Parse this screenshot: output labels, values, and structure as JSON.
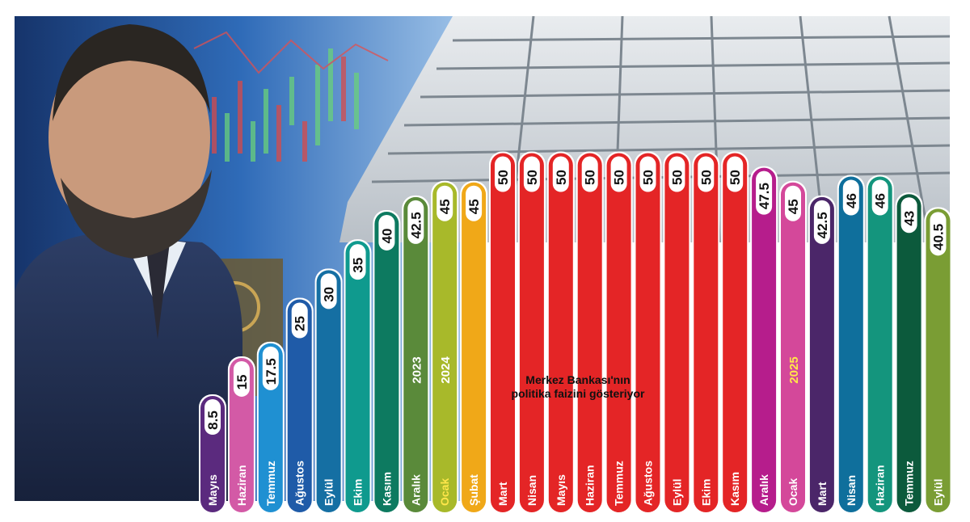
{
  "chart_data": {
    "type": "bar",
    "categories": [
      "Mayıs",
      "Haziran",
      "Temmuz",
      "Ağustos",
      "Eylül",
      "Ekim",
      "Kasım",
      "Aralık",
      "Ocak",
      "Şubat",
      "Mart",
      "Nisan",
      "Mayıs",
      "Haziran",
      "Temmuz",
      "Ağustos",
      "Eylül",
      "Ekim",
      "Kasım",
      "Aralık",
      "Ocak",
      "Mart",
      "Nisan",
      "Haziran",
      "Temmuz",
      "Eylül"
    ],
    "values": [
      8.5,
      15,
      17.5,
      25,
      30,
      35,
      40,
      42.5,
      45,
      45,
      50,
      50,
      50,
      50,
      50,
      50,
      50,
      50,
      50,
      47.5,
      45,
      42.5,
      46,
      46,
      43,
      40.5
    ],
    "value_labels": [
      "8.5",
      "15",
      "17.5",
      "25",
      "30",
      "35",
      "40",
      "42.5",
      "45",
      "45",
      "50",
      "50",
      "50",
      "50",
      "50",
      "50",
      "50",
      "50",
      "50",
      "47.5",
      "45",
      "42.5",
      "46",
      "46",
      "43",
      "40.5"
    ],
    "colors": [
      "#5b2a7e",
      "#d35aa6",
      "#1f90d2",
      "#1f5ba8",
      "#156fa3",
      "#0f9a8e",
      "#0d7a60",
      "#5a8a3a",
      "#a8b92a",
      "#f0a818",
      "#e42526",
      "#e42526",
      "#e42526",
      "#e42526",
      "#e42526",
      "#e42526",
      "#e42526",
      "#e42526",
      "#e42526",
      "#b61d8c",
      "#d4489a",
      "#4b2669",
      "#0f6f9c",
      "#14957d",
      "#0c5a3c",
      "#7a9d34"
    ],
    "year_markers": [
      {
        "index": 7,
        "text": "2023",
        "color": "#ffffff"
      },
      {
        "index": 8,
        "text": "2024",
        "color": "#ffffff"
      },
      {
        "index": 20,
        "text": "2025",
        "color": "#ffe64a"
      }
    ],
    "highlight_categories": [
      8
    ],
    "caption": [
      "Merkez Bankası'nın",
      "politika faizini gösteriyor"
    ],
    "ylim": [
      0,
      50
    ]
  }
}
